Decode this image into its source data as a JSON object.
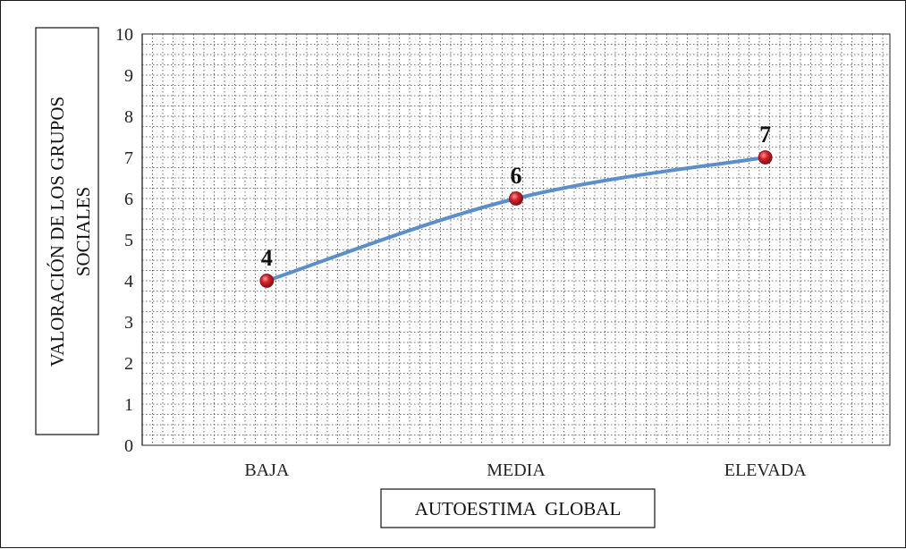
{
  "chart_data": {
    "type": "line",
    "title": "",
    "categories": [
      "BAJA",
      "MEDIA",
      "ELEVADA"
    ],
    "series": [
      {
        "values": [
          4,
          6,
          7
        ]
      }
    ],
    "data_labels": [
      "4",
      "6",
      "7"
    ],
    "xlabel": "AUTOESTIMA  GLOBAL",
    "ylabel_lines": [
      "VALORACIÓN  DE LOS GRUPOS",
      "SOCIALES"
    ],
    "ylim": [
      0,
      10
    ],
    "yticks": [
      "0",
      "1",
      "2",
      "3",
      "4",
      "5",
      "6",
      "7",
      "8",
      "9",
      "10"
    ],
    "grid": true,
    "grid_style": "dotted",
    "legend": "none",
    "colors": {
      "line": "#5b8fc9",
      "marker": "#d0212a",
      "grid": "#444444",
      "axis": "#222222"
    }
  }
}
